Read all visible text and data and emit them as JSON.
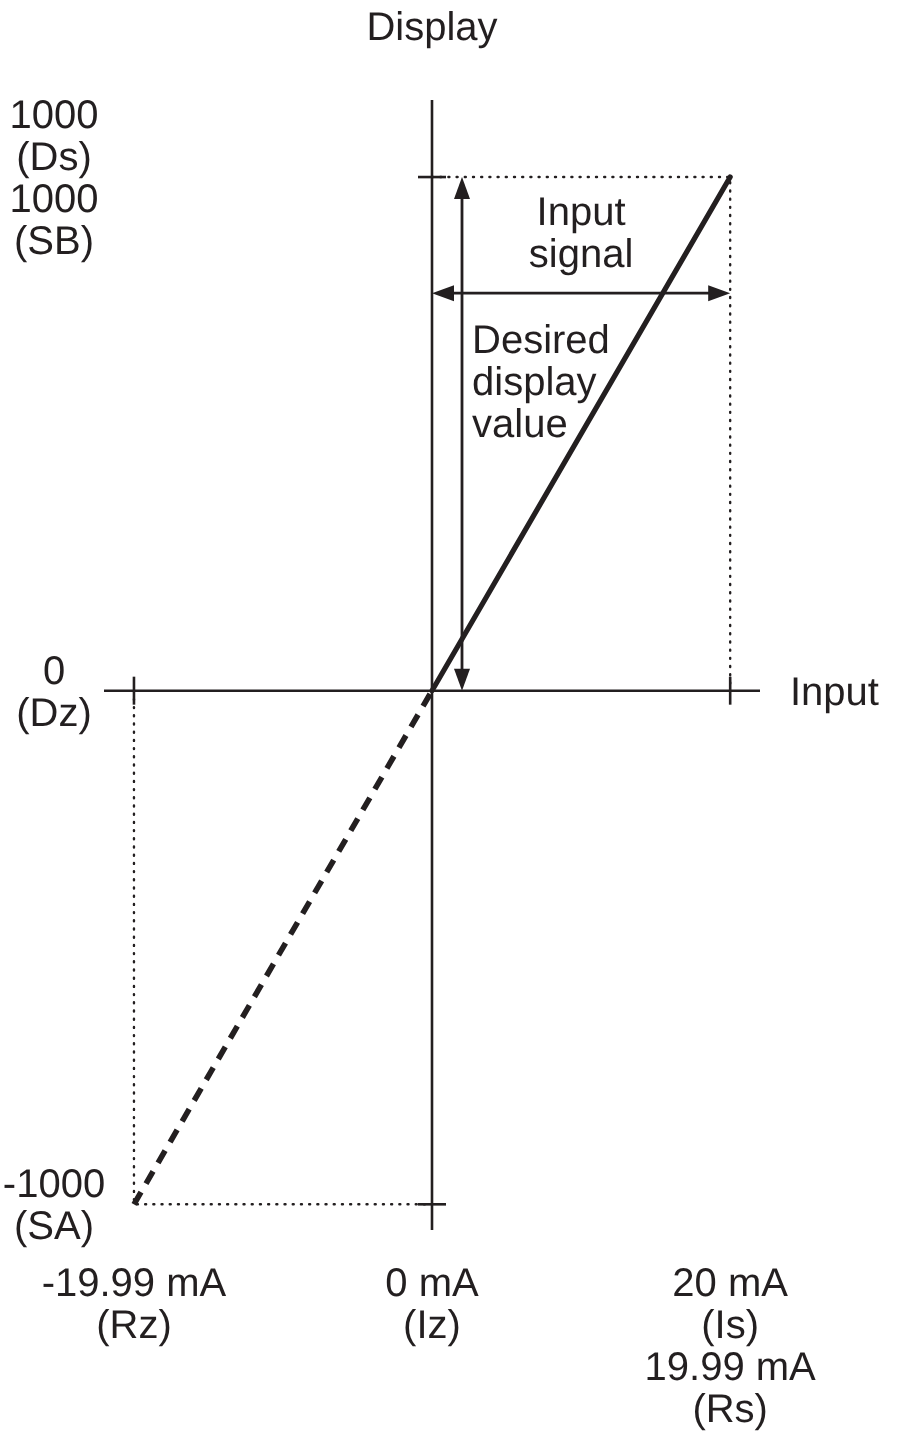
{
  "chart_data": {
    "type": "line",
    "xlabel": "Input",
    "ylabel": "Display",
    "marker": "none",
    "series": [
      {
        "color": "#231f20",
        "x": [
          0,
          20
        ],
        "values": [
          0,
          1000
        ],
        "line_style": "solid"
      },
      {
        "color": "#231f20",
        "x": [
          -19.99,
          0
        ],
        "values": [
          -1000,
          0
        ],
        "line_style": "dashed"
      },
      {
        "color": "#231f20",
        "x": [
          0,
          20,
          20
        ],
        "values": [
          1000,
          1000,
          0
        ],
        "line_style": "dotted"
      },
      {
        "color": "#231f20",
        "x": [
          -19.99,
          -19.99,
          0
        ],
        "values": [
          0,
          -1000,
          -1000
        ],
        "line_style": "dotted"
      }
    ],
    "xlim": [
      -22,
      22
    ],
    "ylim": [
      -1050,
      1150
    ],
    "xticks": [
      {
        "value": -19.99,
        "label": "-19.99 mA\n(Rz)"
      },
      {
        "value": 0,
        "label": "0 mA\n(Iz)"
      },
      {
        "value": 20,
        "label": "20 mA\n(Is)\n19.99 mA\n(Rs)"
      }
    ],
    "yticks": [
      {
        "value": -1000,
        "label": "-1000\n(SA)"
      },
      {
        "value": 0,
        "label": "0\n(Dz)"
      },
      {
        "value": 1000,
        "label": "1000\n(Ds)\n1000\n(SB)"
      }
    ],
    "annotations": [
      "Input\nsignal",
      "Desired\ndisplay\nvalue"
    ]
  }
}
